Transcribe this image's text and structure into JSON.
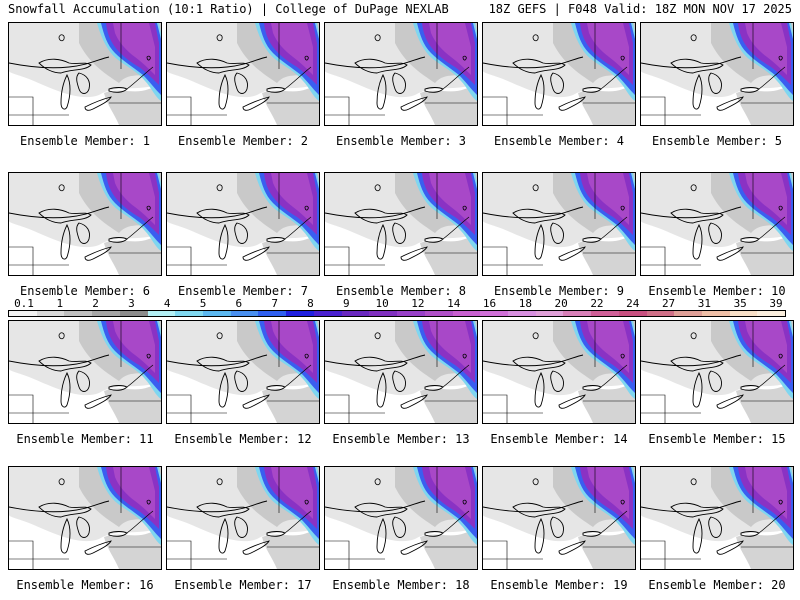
{
  "header": {
    "title_left": "Snowfall Accumulation (10:1 Ratio) | College of DuPage NEXLAB",
    "title_right": "18Z GEFS | F048 Valid: 18Z MON NOV 17 2025"
  },
  "members": [
    {
      "label": "Ensemble Member: 1"
    },
    {
      "label": "Ensemble Member: 2"
    },
    {
      "label": "Ensemble Member: 3"
    },
    {
      "label": "Ensemble Member: 4"
    },
    {
      "label": "Ensemble Member: 5"
    },
    {
      "label": "Ensemble Member: 6"
    },
    {
      "label": "Ensemble Member: 7"
    },
    {
      "label": "Ensemble Member: 8"
    },
    {
      "label": "Ensemble Member: 9"
    },
    {
      "label": "Ensemble Member: 10"
    },
    {
      "label": "Ensemble Member: 11"
    },
    {
      "label": "Ensemble Member: 12"
    },
    {
      "label": "Ensemble Member: 13"
    },
    {
      "label": "Ensemble Member: 14"
    },
    {
      "label": "Ensemble Member: 15"
    },
    {
      "label": "Ensemble Member: 16"
    },
    {
      "label": "Ensemble Member: 17"
    },
    {
      "label": "Ensemble Member: 18"
    },
    {
      "label": "Ensemble Member: 19"
    },
    {
      "label": "Ensemble Member: 20"
    }
  ],
  "colorbar": {
    "labels": [
      "0.1",
      "1",
      "2",
      "3",
      "4",
      "5",
      "6",
      "7",
      "8",
      "9",
      "10",
      "12",
      "14",
      "16",
      "18",
      "20",
      "22",
      "24",
      "27",
      "31",
      "35",
      "39"
    ],
    "colors": [
      "#f2f2f2",
      "#d9d9d9",
      "#bfbfbf",
      "#a6a6a6",
      "#8c8c8c",
      "#b3f0f5",
      "#80d8f0",
      "#5cb8f0",
      "#4a90f0",
      "#3060f0",
      "#2020e0",
      "#4a20d0",
      "#6a28c0",
      "#8030c0",
      "#9840c8",
      "#b050c8",
      "#c860d0",
      "#d070d8",
      "#d890e0",
      "#e0a0d8",
      "#d880b8",
      "#d06098",
      "#c85080",
      "#d07088",
      "#e0a098",
      "#f0c0a8",
      "#f8e0c8",
      "#faeedd"
    ]
  }
}
